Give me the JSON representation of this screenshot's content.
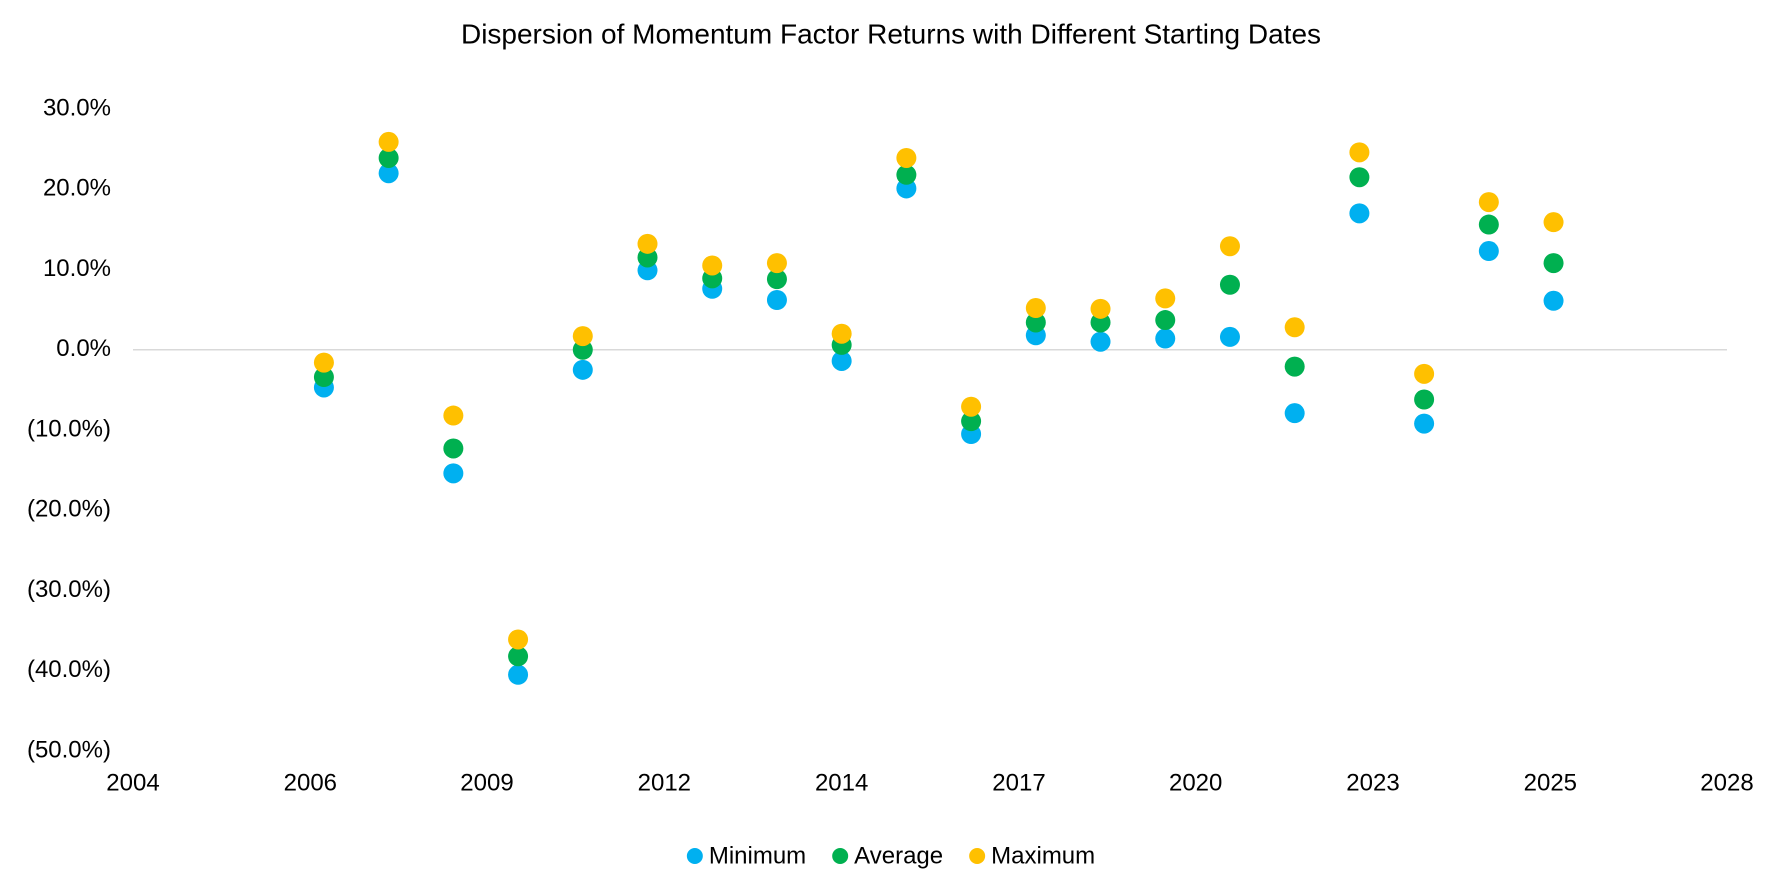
{
  "chart_data": {
    "type": "scatter",
    "title": "Dispersion of Momentum Factor Returns with Different Starting Dates",
    "x": [
      2006.95,
      2007.95,
      2008.95,
      2009.95,
      2010.95,
      2011.95,
      2012.95,
      2013.95,
      2014.95,
      2015.95,
      2016.95,
      2017.95,
      2018.95,
      2019.95,
      2020.95,
      2021.95,
      2022.95,
      2023.95,
      2024.95,
      2025.95
    ],
    "series": [
      {
        "name": "Minimum",
        "color": "#00b0f0",
        "values": [
          -4.7,
          22.0,
          -15.4,
          -40.5,
          -2.5,
          9.9,
          7.6,
          6.2,
          -1.4,
          20.1,
          -10.5,
          1.8,
          1.0,
          1.4,
          1.6,
          -7.9,
          17.0,
          -9.2,
          12.3,
          6.1
        ]
      },
      {
        "name": "Average",
        "color": "#00b050",
        "values": [
          -3.4,
          23.9,
          -12.3,
          -38.2,
          0.0,
          11.5,
          8.9,
          8.8,
          0.6,
          21.8,
          -8.9,
          3.4,
          3.4,
          3.7,
          8.1,
          -2.1,
          21.5,
          -6.2,
          15.6,
          10.8
        ]
      },
      {
        "name": "Maximum",
        "color": "#ffc000",
        "values": [
          -1.6,
          25.9,
          -8.2,
          -36.1,
          1.7,
          13.2,
          10.5,
          10.8,
          2.0,
          23.9,
          -7.1,
          5.2,
          5.1,
          6.4,
          12.9,
          2.8,
          24.6,
          -3.0,
          18.4,
          15.9
        ]
      }
    ],
    "xlim": [
      2004.0,
      2028.63
    ],
    "xticks": [
      {
        "value": 2004.0,
        "label": "2004"
      },
      {
        "value": 2006.74,
        "label": "2006"
      },
      {
        "value": 2009.47,
        "label": "2009"
      },
      {
        "value": 2012.21,
        "label": "2012"
      },
      {
        "value": 2014.95,
        "label": "2014"
      },
      {
        "value": 2017.69,
        "label": "2017"
      },
      {
        "value": 2020.42,
        "label": "2020"
      },
      {
        "value": 2023.16,
        "label": "2023"
      },
      {
        "value": 2025.9,
        "label": "2025"
      },
      {
        "value": 2028.63,
        "label": "2028"
      }
    ],
    "ylim": [
      -50,
      30
    ],
    "yticks": [
      {
        "value": 30,
        "label": "30.0%"
      },
      {
        "value": 20,
        "label": "20.0%"
      },
      {
        "value": 10,
        "label": "10.0%"
      },
      {
        "value": 0,
        "label": "0.0%"
      },
      {
        "value": -10,
        "label": "(10.0%)"
      },
      {
        "value": -20,
        "label": "(20.0%)"
      },
      {
        "value": -30,
        "label": "(30.0%)"
      },
      {
        "value": -40,
        "label": "(40.0%)"
      },
      {
        "value": -50,
        "label": "(50.0%)"
      }
    ],
    "grid": false,
    "legend": "bottom"
  }
}
